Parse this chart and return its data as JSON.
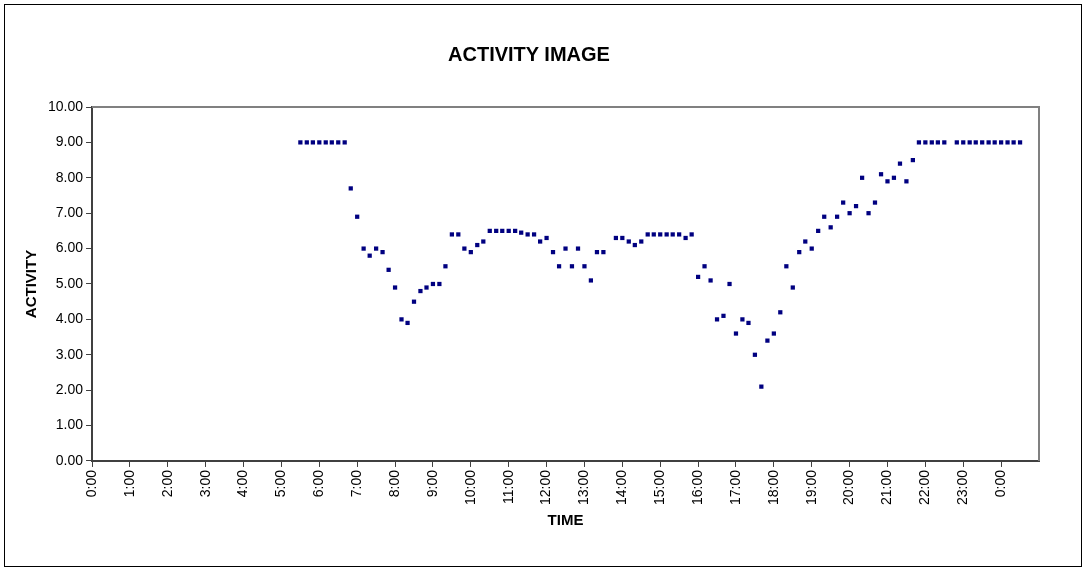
{
  "chart_data": {
    "type": "scatter",
    "title": "ACTIVITY IMAGE",
    "xlabel": "TIME",
    "ylabel": "ACTIVITY",
    "xlim": [
      0,
      25
    ],
    "xticks": [
      {
        "value": 0,
        "label": "0:00"
      },
      {
        "value": 1,
        "label": "1:00"
      },
      {
        "value": 2,
        "label": "2:00"
      },
      {
        "value": 3,
        "label": "3:00"
      },
      {
        "value": 4,
        "label": "4:00"
      },
      {
        "value": 5,
        "label": "5:00"
      },
      {
        "value": 6,
        "label": "6:00"
      },
      {
        "value": 7,
        "label": "7:00"
      },
      {
        "value": 8,
        "label": "8:00"
      },
      {
        "value": 9,
        "label": "9:00"
      },
      {
        "value": 10,
        "label": "10:00"
      },
      {
        "value": 11,
        "label": "11:00"
      },
      {
        "value": 12,
        "label": "12:00"
      },
      {
        "value": 13,
        "label": "13:00"
      },
      {
        "value": 14,
        "label": "14:00"
      },
      {
        "value": 15,
        "label": "15:00"
      },
      {
        "value": 16,
        "label": "16:00"
      },
      {
        "value": 17,
        "label": "17:00"
      },
      {
        "value": 18,
        "label": "18:00"
      },
      {
        "value": 19,
        "label": "19:00"
      },
      {
        "value": 20,
        "label": "20:00"
      },
      {
        "value": 21,
        "label": "21:00"
      },
      {
        "value": 22,
        "label": "22:00"
      },
      {
        "value": 23,
        "label": "23:00"
      },
      {
        "value": 24,
        "label": "0:00"
      }
    ],
    "ylim": [
      0,
      10
    ],
    "yticks": [
      {
        "value": 0,
        "label": "0.00"
      },
      {
        "value": 1,
        "label": "1.00"
      },
      {
        "value": 2,
        "label": "2.00"
      },
      {
        "value": 3,
        "label": "3.00"
      },
      {
        "value": 4,
        "label": "4.00"
      },
      {
        "value": 5,
        "label": "5.00"
      },
      {
        "value": 6,
        "label": "6.00"
      },
      {
        "value": 7,
        "label": "7.00"
      },
      {
        "value": 8,
        "label": "8.00"
      },
      {
        "value": 9,
        "label": "9.00"
      },
      {
        "value": 10,
        "label": "10.00"
      }
    ],
    "series": [
      {
        "color": "#000080",
        "x": [
          5.5,
          5.67,
          5.83,
          6,
          6.17,
          6.33,
          6.5,
          6.67,
          6.83,
          7,
          7.17,
          7.33,
          7.5,
          7.67,
          7.83,
          8,
          8.17,
          8.33,
          8.5,
          8.67,
          8.83,
          9,
          9.17,
          9.33,
          9.5,
          9.67,
          9.83,
          10,
          10.17,
          10.33,
          10.5,
          10.67,
          10.83,
          11,
          11.17,
          11.33,
          11.5,
          11.67,
          11.83,
          12,
          12.17,
          12.33,
          12.5,
          12.67,
          12.83,
          13,
          13.17,
          13.33,
          13.5,
          13.83,
          14,
          14.17,
          14.33,
          14.5,
          14.67,
          14.83,
          15,
          15.17,
          15.33,
          15.5,
          15.67,
          15.83,
          16,
          16.17,
          16.33,
          16.5,
          16.67,
          16.83,
          17,
          17.17,
          17.33,
          17.5,
          17.67,
          17.83,
          18,
          18.17,
          18.33,
          18.5,
          18.67,
          18.83,
          19,
          19.17,
          19.33,
          19.5,
          19.67,
          19.83,
          20,
          20.17,
          20.33,
          20.5,
          20.67,
          20.83,
          21,
          21.17,
          21.33,
          21.5,
          21.67,
          21.83,
          22,
          22.17,
          22.33,
          22.5,
          22.83,
          23,
          23.17,
          23.33,
          23.5,
          23.67,
          23.83,
          24,
          24.17,
          24.33,
          24.5
        ],
        "values": [
          9,
          9,
          9,
          9,
          9,
          9,
          9,
          9,
          7.7,
          6.9,
          6.0,
          5.8,
          6.0,
          5.9,
          5.4,
          4.9,
          4.0,
          3.9,
          4.5,
          4.8,
          4.9,
          5.0,
          5.0,
          5.5,
          6.4,
          6.4,
          6.0,
          5.9,
          6.1,
          6.2,
          6.5,
          6.5,
          6.5,
          6.5,
          6.5,
          6.45,
          6.4,
          6.4,
          6.2,
          6.3,
          5.9,
          5.5,
          6.0,
          5.5,
          6.0,
          5.5,
          5.1,
          5.9,
          5.9,
          6.3,
          6.3,
          6.2,
          6.1,
          6.2,
          6.4,
          6.4,
          6.4,
          6.4,
          6.4,
          6.4,
          6.3,
          6.4,
          5.2,
          5.5,
          5.1,
          4.0,
          4.1,
          5.0,
          3.6,
          4.0,
          3.9,
          3.0,
          2.1,
          3.4,
          3.6,
          4.2,
          5.5,
          4.9,
          5.9,
          6.2,
          6.0,
          6.5,
          6.9,
          6.6,
          6.9,
          7.3,
          7.0,
          7.2,
          8.0,
          7.0,
          7.3,
          8.1,
          7.9,
          8.0,
          8.4,
          7.9,
          8.5,
          9,
          9,
          9,
          9,
          9,
          9,
          9,
          9,
          9,
          9,
          9,
          9,
          9,
          9,
          9,
          9
        ]
      }
    ],
    "marker": "square",
    "legend": false,
    "grid": false
  }
}
